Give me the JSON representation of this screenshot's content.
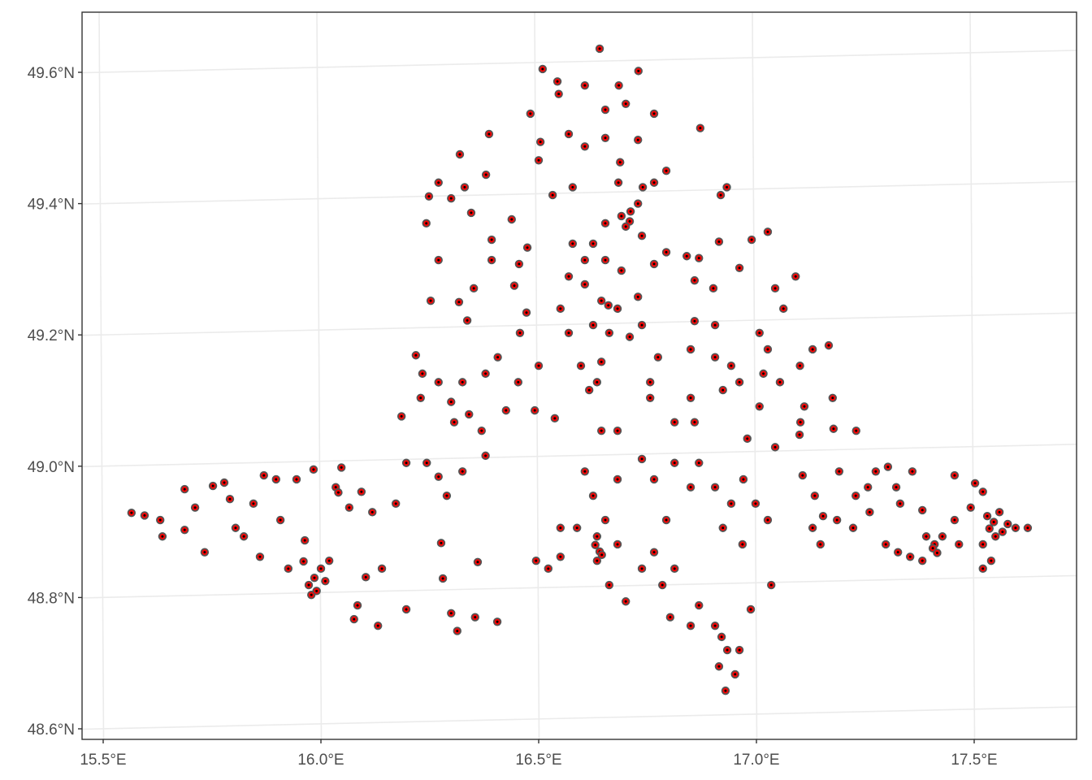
{
  "chart_data": {
    "type": "scatter",
    "title": "",
    "xlabel": "",
    "ylabel": "",
    "xlim": [
      15.45,
      17.72
    ],
    "ylim": [
      48.583,
      49.69
    ],
    "grid": true,
    "x_ticks": [
      "15.5°E",
      "16.0°E",
      "16.5°E",
      "17.0°E",
      "17.5°E"
    ],
    "x_tick_values": [
      15.5,
      16.0,
      16.5,
      17.0,
      17.5
    ],
    "y_ticks": [
      "48.6°N",
      "48.8°N",
      "49.0°N",
      "49.2°N",
      "49.4°N",
      "49.6°N"
    ],
    "y_tick_values": [
      48.6,
      48.8,
      49.0,
      49.2,
      49.4,
      49.6
    ],
    "point_fill": "#ff0000",
    "point_stroke": "#555555",
    "point_center": "#000000",
    "grid_color": "#ebebeb",
    "points": [
      [
        15.565,
        48.929
      ],
      [
        15.595,
        48.925
      ],
      [
        15.631,
        48.918
      ],
      [
        15.636,
        48.893
      ],
      [
        15.687,
        48.965
      ],
      [
        15.687,
        48.903
      ],
      [
        15.711,
        48.937
      ],
      [
        15.733,
        48.869
      ],
      [
        15.752,
        48.97
      ],
      [
        15.778,
        48.975
      ],
      [
        15.791,
        48.95
      ],
      [
        15.804,
        48.906
      ],
      [
        15.823,
        48.893
      ],
      [
        15.845,
        48.943
      ],
      [
        15.869,
        48.986
      ],
      [
        15.86,
        48.862
      ],
      [
        15.897,
        48.98
      ],
      [
        15.907,
        48.918
      ],
      [
        15.925,
        48.844
      ],
      [
        15.944,
        48.98
      ],
      [
        15.963,
        48.887
      ],
      [
        15.972,
        48.819
      ],
      [
        15.983,
        48.995
      ],
      [
        16.0,
        48.844
      ],
      [
        15.978,
        48.804
      ],
      [
        16.019,
        48.856
      ],
      [
        16.047,
        48.998
      ],
      [
        16.034,
        48.968
      ],
      [
        16.065,
        48.937
      ],
      [
        16.093,
        48.961
      ],
      [
        16.118,
        48.93
      ],
      [
        16.103,
        48.831
      ],
      [
        16.14,
        48.844
      ],
      [
        16.172,
        48.943
      ],
      [
        16.084,
        48.788
      ],
      [
        16.131,
        48.757
      ],
      [
        16.196,
        48.782
      ],
      [
        16.076,
        48.767
      ],
      [
        16.299,
        48.776
      ],
      [
        16.313,
        48.749
      ],
      [
        16.354,
        48.77
      ],
      [
        16.405,
        48.763
      ],
      [
        16.36,
        48.854
      ],
      [
        16.28,
        48.829
      ],
      [
        16.276,
        48.883
      ],
      [
        15.99,
        48.81
      ],
      [
        15.985,
        48.83
      ],
      [
        16.01,
        48.825
      ],
      [
        15.96,
        48.855
      ],
      [
        16.04,
        48.96
      ],
      [
        16.185,
        49.076
      ],
      [
        16.196,
        49.005
      ],
      [
        16.218,
        49.169
      ],
      [
        16.233,
        49.141
      ],
      [
        16.229,
        49.104
      ],
      [
        16.27,
        49.128
      ],
      [
        16.299,
        49.098
      ],
      [
        16.325,
        49.128
      ],
      [
        16.306,
        49.067
      ],
      [
        16.34,
        49.079
      ],
      [
        16.325,
        48.992
      ],
      [
        16.369,
        49.054
      ],
      [
        16.27,
        48.984
      ],
      [
        16.289,
        48.955
      ],
      [
        16.243,
        49.005
      ],
      [
        16.378,
        49.016
      ],
      [
        16.425,
        49.085
      ],
      [
        16.378,
        49.141
      ],
      [
        16.406,
        49.166
      ],
      [
        16.453,
        49.128
      ],
      [
        16.5,
        49.153
      ],
      [
        16.491,
        49.085
      ],
      [
        16.537,
        49.073
      ],
      [
        16.252,
        49.252
      ],
      [
        16.317,
        49.25
      ],
      [
        16.336,
        49.222
      ],
      [
        16.351,
        49.271
      ],
      [
        16.27,
        49.314
      ],
      [
        16.242,
        49.37
      ],
      [
        16.248,
        49.411
      ],
      [
        16.27,
        49.432
      ],
      [
        16.299,
        49.408
      ],
      [
        16.319,
        49.475
      ],
      [
        16.345,
        49.386
      ],
      [
        16.33,
        49.425
      ],
      [
        16.379,
        49.444
      ],
      [
        16.392,
        49.345
      ],
      [
        16.392,
        49.314
      ],
      [
        16.438,
        49.376
      ],
      [
        16.386,
        49.506
      ],
      [
        16.455,
        49.308
      ],
      [
        16.474,
        49.333
      ],
      [
        16.444,
        49.275
      ],
      [
        16.472,
        49.234
      ],
      [
        16.457,
        49.203
      ],
      [
        16.481,
        49.537
      ],
      [
        16.509,
        49.605
      ],
      [
        16.543,
        49.586
      ],
      [
        16.546,
        49.567
      ],
      [
        16.5,
        49.466
      ],
      [
        16.504,
        49.494
      ],
      [
        16.569,
        49.506
      ],
      [
        16.532,
        49.413
      ],
      [
        16.578,
        49.425
      ],
      [
        16.606,
        49.58
      ],
      [
        16.64,
        49.636
      ],
      [
        16.684,
        49.58
      ],
      [
        16.729,
        49.602
      ],
      [
        16.653,
        49.543
      ],
      [
        16.7,
        49.552
      ],
      [
        16.765,
        49.537
      ],
      [
        16.606,
        49.487
      ],
      [
        16.653,
        49.5
      ],
      [
        16.687,
        49.463
      ],
      [
        16.728,
        49.497
      ],
      [
        16.871,
        49.515
      ],
      [
        16.683,
        49.432
      ],
      [
        16.711,
        49.388
      ],
      [
        16.739,
        49.425
      ],
      [
        16.765,
        49.432
      ],
      [
        16.793,
        49.45
      ],
      [
        16.709,
        49.373
      ],
      [
        16.69,
        49.381
      ],
      [
        16.728,
        49.4
      ],
      [
        16.7,
        49.365
      ],
      [
        16.653,
        49.37
      ],
      [
        16.578,
        49.339
      ],
      [
        16.625,
        49.339
      ],
      [
        16.606,
        49.314
      ],
      [
        16.653,
        49.314
      ],
      [
        16.69,
        49.298
      ],
      [
        16.737,
        49.351
      ],
      [
        16.765,
        49.308
      ],
      [
        16.793,
        49.326
      ],
      [
        16.569,
        49.289
      ],
      [
        16.606,
        49.277
      ],
      [
        16.644,
        49.252
      ],
      [
        16.681,
        49.24
      ],
      [
        16.728,
        49.258
      ],
      [
        16.625,
        49.215
      ],
      [
        16.662,
        49.203
      ],
      [
        16.709,
        49.197
      ],
      [
        16.737,
        49.215
      ],
      [
        16.55,
        49.24
      ],
      [
        16.569,
        49.203
      ],
      [
        16.597,
        49.153
      ],
      [
        16.644,
        49.159
      ],
      [
        16.616,
        49.116
      ],
      [
        16.634,
        49.128
      ],
      [
        16.66,
        49.245
      ],
      [
        16.55,
        48.906
      ],
      [
        16.494,
        48.856
      ],
      [
        16.522,
        48.844
      ],
      [
        16.55,
        48.862
      ],
      [
        16.588,
        48.906
      ],
      [
        16.634,
        48.893
      ],
      [
        16.634,
        48.856
      ],
      [
        16.653,
        48.918
      ],
      [
        16.681,
        48.881
      ],
      [
        16.662,
        48.819
      ],
      [
        16.7,
        48.794
      ],
      [
        16.737,
        48.844
      ],
      [
        16.765,
        48.869
      ],
      [
        16.784,
        48.819
      ],
      [
        16.812,
        48.844
      ],
      [
        16.802,
        48.77
      ],
      [
        16.849,
        48.757
      ],
      [
        16.868,
        48.788
      ],
      [
        16.905,
        48.757
      ],
      [
        16.933,
        48.72
      ],
      [
        16.914,
        48.695
      ],
      [
        16.929,
        48.658
      ],
      [
        16.961,
        48.72
      ],
      [
        16.951,
        48.683
      ],
      [
        16.625,
        48.955
      ],
      [
        16.606,
        48.992
      ],
      [
        16.681,
        48.98
      ],
      [
        16.737,
        49.011
      ],
      [
        16.765,
        48.98
      ],
      [
        16.812,
        49.005
      ],
      [
        16.849,
        48.968
      ],
      [
        16.793,
        48.918
      ],
      [
        16.868,
        49.005
      ],
      [
        16.905,
        48.968
      ],
      [
        16.942,
        48.943
      ],
      [
        16.97,
        48.98
      ],
      [
        16.923,
        48.906
      ],
      [
        16.968,
        48.881
      ],
      [
        16.987,
        48.782
      ],
      [
        17.034,
        48.819
      ],
      [
        16.998,
        48.943
      ],
      [
        17.026,
        48.918
      ],
      [
        16.644,
        49.054
      ],
      [
        16.681,
        49.054
      ],
      [
        16.756,
        49.104
      ],
      [
        16.812,
        49.067
      ],
      [
        16.858,
        49.067
      ],
      [
        16.849,
        49.104
      ],
      [
        16.756,
        49.128
      ],
      [
        16.774,
        49.166
      ],
      [
        16.849,
        49.178
      ],
      [
        16.858,
        49.221
      ],
      [
        16.905,
        49.215
      ],
      [
        16.905,
        49.166
      ],
      [
        16.942,
        49.153
      ],
      [
        16.961,
        49.128
      ],
      [
        16.923,
        49.116
      ],
      [
        16.979,
        49.042
      ],
      [
        17.007,
        49.091
      ],
      [
        17.016,
        49.141
      ],
      [
        17.026,
        49.178
      ],
      [
        17.054,
        49.128
      ],
      [
        17.1,
        49.153
      ],
      [
        17.129,
        49.178
      ],
      [
        17.166,
        49.184
      ],
      [
        17.11,
        49.091
      ],
      [
        17.101,
        49.067
      ],
      [
        17.175,
        49.104
      ],
      [
        17.043,
        49.029
      ],
      [
        17.099,
        49.048
      ],
      [
        17.177,
        49.057
      ],
      [
        17.229,
        49.054
      ],
      [
        17.043,
        49.271
      ],
      [
        17.062,
        49.24
      ],
      [
        17.09,
        49.289
      ],
      [
        17.007,
        49.203
      ],
      [
        16.858,
        49.283
      ],
      [
        16.901,
        49.271
      ],
      [
        16.868,
        49.317
      ],
      [
        16.914,
        49.342
      ],
      [
        16.961,
        49.302
      ],
      [
        16.989,
        49.345
      ],
      [
        17.026,
        49.357
      ],
      [
        16.932,
        49.425
      ],
      [
        16.918,
        49.413
      ],
      [
        16.84,
        49.32
      ],
      [
        16.64,
        48.87
      ],
      [
        16.63,
        48.88
      ],
      [
        16.645,
        48.865
      ],
      [
        16.92,
        48.74
      ],
      [
        17.106,
        48.986
      ],
      [
        17.134,
        48.955
      ],
      [
        17.153,
        48.924
      ],
      [
        17.19,
        48.992
      ],
      [
        17.228,
        48.955
      ],
      [
        17.256,
        48.968
      ],
      [
        17.274,
        48.992
      ],
      [
        17.302,
        48.999
      ],
      [
        17.321,
        48.968
      ],
      [
        17.358,
        48.992
      ],
      [
        17.33,
        48.943
      ],
      [
        17.129,
        48.906
      ],
      [
        17.147,
        48.881
      ],
      [
        17.185,
        48.918
      ],
      [
        17.222,
        48.906
      ],
      [
        17.26,
        48.93
      ],
      [
        17.297,
        48.881
      ],
      [
        17.325,
        48.869
      ],
      [
        17.353,
        48.862
      ],
      [
        17.381,
        48.856
      ],
      [
        17.39,
        48.893
      ],
      [
        17.409,
        48.881
      ],
      [
        17.427,
        48.893
      ],
      [
        17.455,
        48.918
      ],
      [
        17.455,
        48.986
      ],
      [
        17.502,
        48.974
      ],
      [
        17.52,
        48.961
      ],
      [
        17.492,
        48.937
      ],
      [
        17.53,
        48.924
      ],
      [
        17.558,
        48.93
      ],
      [
        17.577,
        48.912
      ],
      [
        17.595,
        48.906
      ],
      [
        17.623,
        48.906
      ],
      [
        17.549,
        48.893
      ],
      [
        17.52,
        48.881
      ],
      [
        17.539,
        48.856
      ],
      [
        17.52,
        48.844
      ],
      [
        17.465,
        48.881
      ],
      [
        17.381,
        48.933
      ],
      [
        17.405,
        48.875
      ],
      [
        17.415,
        48.868
      ],
      [
        17.545,
        48.915
      ],
      [
        17.565,
        48.9
      ],
      [
        17.535,
        48.905
      ]
    ]
  }
}
